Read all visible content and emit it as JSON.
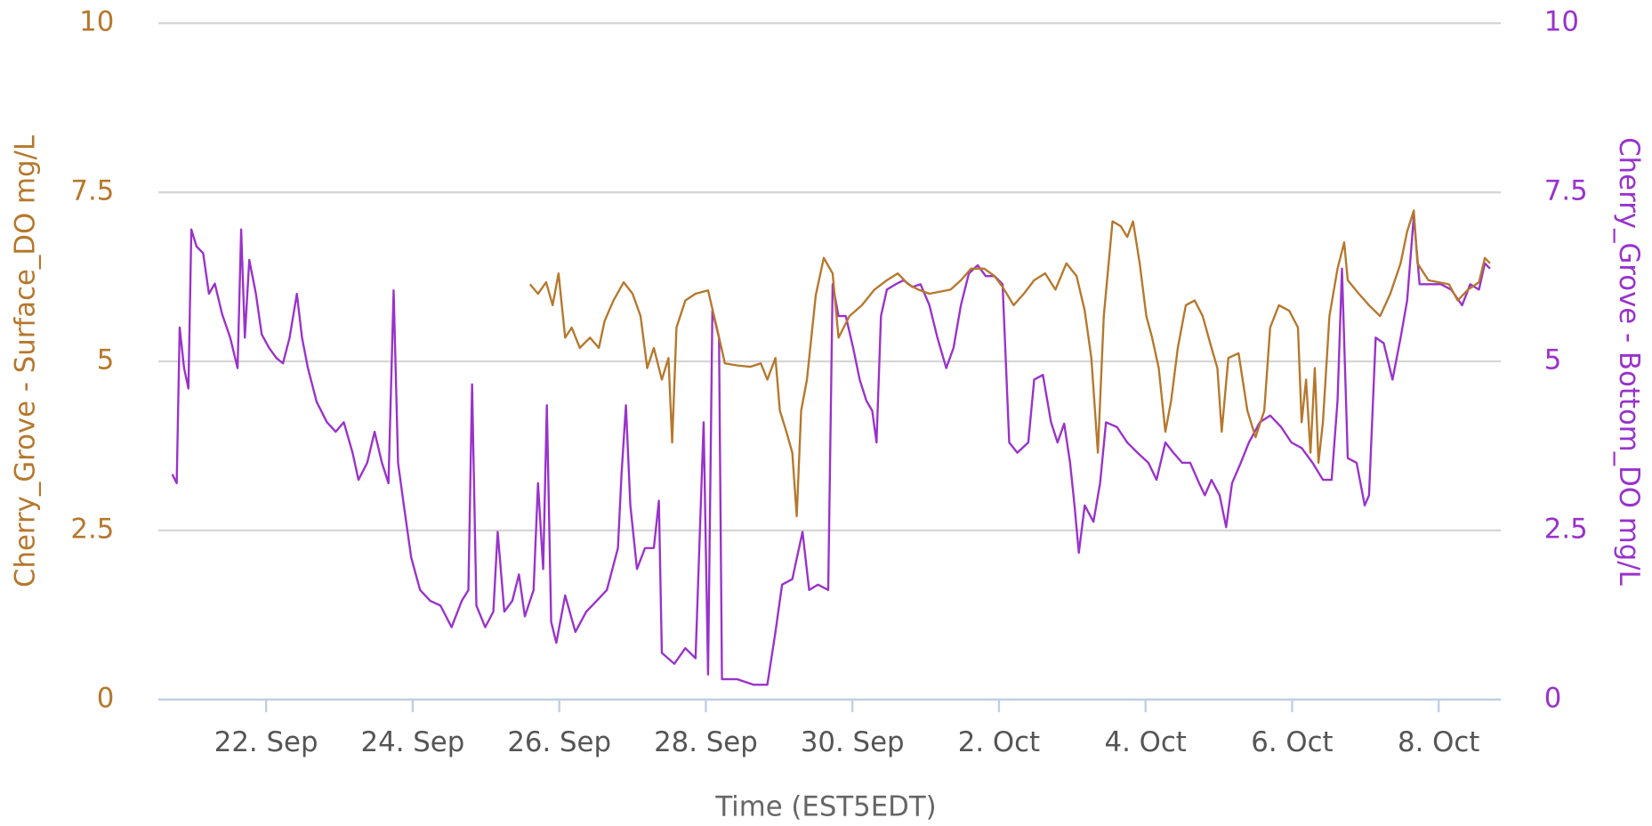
{
  "chart_data": {
    "type": "line",
    "xlabel": "Time (EST5EDT)",
    "ylabel": "Cherry_Grove - Surface_DO mg/L",
    "y2label": "Cherry_Grove - Bottom_DO mg/L",
    "xlim": [
      20.53,
      38.85
    ],
    "xticks": [
      {
        "value": 22,
        "label": "22. Sep"
      },
      {
        "value": 24,
        "label": "24. Sep"
      },
      {
        "value": 26,
        "label": "26. Sep"
      },
      {
        "value": 28,
        "label": "28. Sep"
      },
      {
        "value": 30,
        "label": "30. Sep"
      },
      {
        "value": 32,
        "label": "2. Oct"
      },
      {
        "value": 34,
        "label": "4. Oct"
      },
      {
        "value": 36,
        "label": "6. Oct"
      },
      {
        "value": 38,
        "label": "8. Oct"
      }
    ],
    "ylim": [
      0,
      10
    ],
    "yticks": [
      0,
      2.5,
      5,
      7.5,
      10
    ],
    "y2lim": [
      0,
      10
    ],
    "y2ticks": [
      0,
      2.5,
      5,
      7.5,
      10
    ],
    "ycolor": "#b5782d",
    "y2color": "#9932cc",
    "grid": true,
    "series": [
      {
        "color": "#b5782d",
        "axis": "y",
        "x": [
          25.6,
          25.71,
          25.82,
          25.91,
          25.99,
          26.08,
          26.17,
          26.28,
          26.42,
          26.54,
          26.62,
          26.74,
          26.88,
          27.0,
          27.11,
          27.2,
          27.29,
          27.4,
          27.49,
          27.54,
          27.6,
          27.72,
          27.86,
          28.03,
          28.15,
          28.26,
          28.43,
          28.61,
          28.75,
          28.84,
          28.95,
          29.01,
          29.1,
          29.18,
          29.24,
          29.3,
          29.38,
          29.5,
          29.61,
          29.73,
          29.81,
          29.96,
          30.13,
          30.3,
          30.47,
          30.62,
          30.76,
          30.9,
          31.05,
          31.19,
          31.34,
          31.48,
          31.62,
          31.8,
          31.94,
          32.05,
          32.2,
          32.34,
          32.48,
          32.63,
          32.77,
          32.92,
          33.06,
          33.17,
          33.26,
          33.35,
          33.43,
          33.55,
          33.66,
          33.75,
          33.83,
          33.92,
          34.01,
          34.09,
          34.18,
          34.27,
          34.35,
          34.44,
          34.55,
          34.67,
          34.78,
          34.9,
          34.98,
          35.04,
          35.13,
          35.27,
          35.39,
          35.5,
          35.62,
          35.7,
          35.82,
          35.96,
          36.08,
          36.13,
          36.19,
          36.25,
          36.31,
          36.36,
          36.42,
          36.51,
          36.62,
          36.71,
          36.76,
          36.91,
          37.05,
          37.2,
          37.34,
          37.48,
          37.57,
          37.66,
          37.71,
          37.86,
          38.0,
          38.14,
          38.26,
          38.4,
          38.55,
          38.63,
          38.7
        ],
        "values": [
          6.14,
          6.0,
          6.17,
          5.83,
          6.3,
          5.35,
          5.5,
          5.2,
          5.35,
          5.2,
          5.6,
          5.9,
          6.17,
          6.0,
          5.67,
          4.9,
          5.2,
          4.73,
          5.05,
          3.8,
          5.5,
          5.9,
          6.0,
          6.05,
          5.5,
          4.97,
          4.94,
          4.92,
          4.97,
          4.73,
          5.05,
          4.27,
          3.96,
          3.65,
          2.71,
          4.27,
          4.73,
          5.98,
          6.53,
          6.3,
          5.35,
          5.67,
          5.83,
          6.06,
          6.2,
          6.3,
          6.14,
          6.06,
          6.0,
          6.03,
          6.06,
          6.2,
          6.37,
          6.37,
          6.26,
          6.1,
          5.83,
          6.0,
          6.2,
          6.3,
          6.06,
          6.45,
          6.26,
          5.75,
          5.05,
          3.65,
          5.67,
          7.07,
          7.0,
          6.84,
          7.07,
          6.45,
          5.67,
          5.35,
          4.9,
          3.96,
          4.42,
          5.2,
          5.83,
          5.9,
          5.67,
          5.2,
          4.9,
          3.96,
          5.05,
          5.12,
          4.27,
          3.88,
          4.27,
          5.5,
          5.83,
          5.75,
          5.5,
          4.1,
          4.73,
          3.65,
          4.9,
          3.5,
          4.1,
          5.67,
          6.37,
          6.76,
          6.2,
          6.0,
          5.83,
          5.67,
          6.0,
          6.45,
          6.92,
          7.23,
          6.45,
          6.2,
          6.17,
          6.14,
          5.9,
          6.06,
          6.17,
          6.53,
          6.45
        ]
      },
      {
        "color": "#9932cc",
        "axis": "y2",
        "x": [
          20.72,
          20.78,
          20.82,
          20.88,
          20.94,
          20.98,
          21.05,
          21.14,
          21.22,
          21.3,
          21.4,
          21.51,
          21.61,
          21.66,
          21.71,
          21.77,
          21.86,
          21.94,
          22.04,
          22.14,
          22.23,
          22.32,
          22.42,
          22.49,
          22.57,
          22.69,
          22.83,
          22.95,
          23.06,
          23.18,
          23.26,
          23.38,
          23.48,
          23.58,
          23.67,
          23.74,
          23.8,
          23.88,
          23.98,
          24.1,
          24.24,
          24.38,
          24.53,
          24.67,
          24.76,
          24.81,
          24.87,
          24.99,
          25.1,
          25.16,
          25.25,
          25.36,
          25.45,
          25.53,
          25.65,
          25.71,
          25.78,
          25.83,
          25.89,
          25.96,
          26.08,
          26.22,
          26.37,
          26.51,
          26.65,
          26.8,
          26.85,
          26.91,
          26.97,
          27.06,
          27.17,
          27.29,
          27.36,
          27.4,
          27.57,
          27.72,
          27.86,
          27.97,
          28.03,
          28.09,
          28.18,
          28.22,
          28.43,
          28.65,
          28.84,
          28.95,
          29.04,
          29.18,
          29.32,
          29.41,
          29.53,
          29.67,
          29.73,
          29.81,
          29.91,
          30.01,
          30.1,
          30.19,
          30.27,
          30.33,
          30.39,
          30.47,
          30.59,
          30.7,
          30.82,
          30.93,
          31.05,
          31.16,
          31.28,
          31.38,
          31.48,
          31.59,
          31.71,
          31.82,
          31.94,
          32.05,
          32.14,
          32.25,
          32.4,
          32.48,
          32.6,
          32.71,
          32.8,
          32.89,
          32.97,
          33.03,
          33.09,
          33.17,
          33.29,
          33.38,
          33.46,
          33.61,
          33.75,
          33.89,
          34.04,
          34.15,
          34.27,
          34.38,
          34.5,
          34.61,
          34.73,
          34.81,
          34.9,
          35.01,
          35.1,
          35.18,
          35.3,
          35.41,
          35.56,
          35.7,
          35.85,
          35.99,
          36.13,
          36.28,
          36.42,
          36.54,
          36.62,
          36.68,
          36.76,
          36.88,
          36.99,
          37.05,
          37.14,
          37.25,
          37.37,
          37.48,
          37.57,
          37.66,
          37.74,
          37.88,
          38.03,
          38.17,
          38.32,
          38.43,
          38.55,
          38.63,
          38.7
        ],
        "values": [
          3.33,
          3.2,
          5.5,
          4.9,
          4.6,
          6.95,
          6.7,
          6.6,
          6.0,
          6.15,
          5.7,
          5.35,
          4.9,
          6.95,
          5.35,
          6.5,
          6.0,
          5.4,
          5.2,
          5.05,
          4.97,
          5.35,
          6.0,
          5.35,
          4.9,
          4.4,
          4.1,
          3.96,
          4.1,
          3.65,
          3.25,
          3.5,
          3.96,
          3.5,
          3.2,
          6.05,
          3.5,
          2.87,
          2.1,
          1.62,
          1.46,
          1.39,
          1.07,
          1.46,
          1.62,
          4.66,
          1.39,
          1.07,
          1.3,
          2.48,
          1.3,
          1.46,
          1.85,
          1.23,
          1.62,
          3.2,
          1.93,
          4.35,
          1.15,
          0.84,
          1.54,
          1.0,
          1.3,
          1.46,
          1.62,
          2.24,
          3.33,
          4.35,
          2.87,
          1.93,
          2.24,
          2.24,
          2.94,
          0.69,
          0.53,
          0.76,
          0.61,
          4.1,
          0.37,
          5.75,
          5.35,
          0.3,
          0.3,
          0.22,
          0.22,
          1.0,
          1.7,
          1.78,
          2.48,
          1.62,
          1.7,
          1.62,
          6.14,
          5.67,
          5.67,
          5.2,
          4.73,
          4.42,
          4.27,
          3.8,
          5.67,
          6.06,
          6.14,
          6.2,
          6.1,
          6.14,
          5.83,
          5.35,
          4.9,
          5.2,
          5.83,
          6.3,
          6.42,
          6.26,
          6.26,
          6.14,
          3.8,
          3.65,
          3.8,
          4.73,
          4.8,
          4.1,
          3.8,
          4.08,
          3.5,
          2.87,
          2.17,
          2.87,
          2.63,
          3.2,
          4.1,
          4.03,
          3.8,
          3.65,
          3.5,
          3.25,
          3.8,
          3.65,
          3.5,
          3.5,
          3.2,
          3.02,
          3.25,
          3.02,
          2.55,
          3.2,
          3.5,
          3.8,
          4.1,
          4.2,
          4.03,
          3.8,
          3.72,
          3.5,
          3.25,
          3.25,
          4.42,
          6.37,
          3.57,
          3.5,
          2.87,
          3.02,
          5.35,
          5.27,
          4.73,
          5.35,
          5.9,
          7.15,
          6.14,
          6.14,
          6.14,
          6.06,
          5.83,
          6.14,
          6.06,
          6.45,
          6.37
        ]
      }
    ]
  }
}
